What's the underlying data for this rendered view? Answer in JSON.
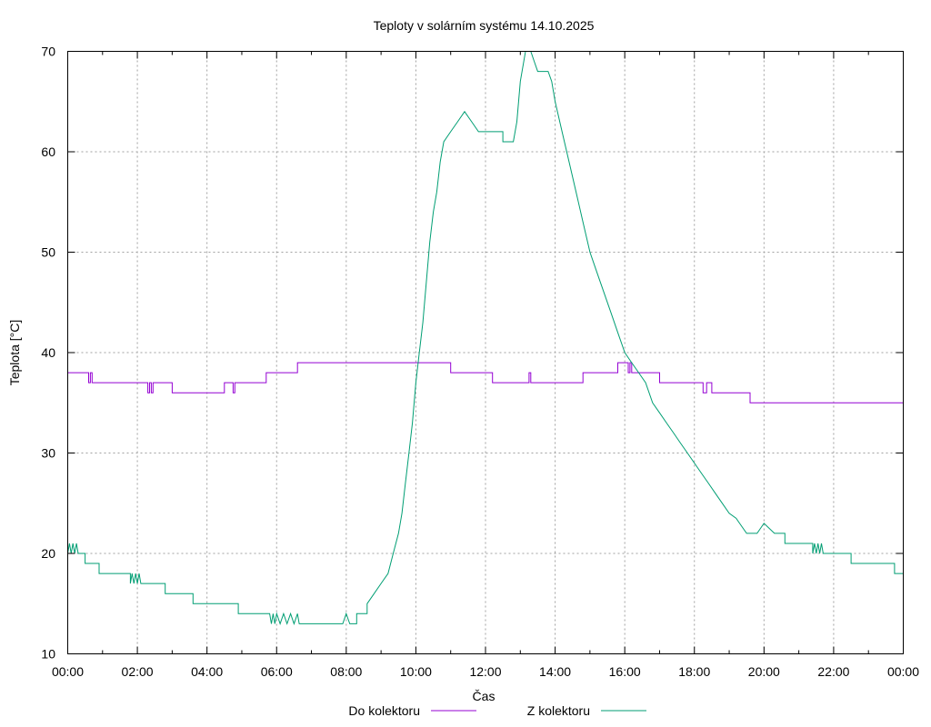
{
  "chart_data": {
    "type": "line",
    "title": "Teploty v solárním systému 14.10.2025",
    "xlabel": "Čas",
    "ylabel": "Teplota [°C]",
    "xlim": [
      0,
      24
    ],
    "ylim": [
      10,
      70
    ],
    "grid": true,
    "legend_position": "bottom",
    "x_ticks": [
      {
        "value": 0,
        "label": "00:00"
      },
      {
        "value": 2,
        "label": "02:00"
      },
      {
        "value": 4,
        "label": "04:00"
      },
      {
        "value": 6,
        "label": "06:00"
      },
      {
        "value": 8,
        "label": "08:00"
      },
      {
        "value": 10,
        "label": "10:00"
      },
      {
        "value": 12,
        "label": "12:00"
      },
      {
        "value": 14,
        "label": "14:00"
      },
      {
        "value": 16,
        "label": "16:00"
      },
      {
        "value": 18,
        "label": "18:00"
      },
      {
        "value": 20,
        "label": "20:00"
      },
      {
        "value": 22,
        "label": "22:00"
      },
      {
        "value": 24,
        "label": "00:00"
      }
    ],
    "y_ticks": [
      {
        "value": 10,
        "label": "10"
      },
      {
        "value": 20,
        "label": "20"
      },
      {
        "value": 30,
        "label": "30"
      },
      {
        "value": 40,
        "label": "40"
      },
      {
        "value": 50,
        "label": "50"
      },
      {
        "value": 60,
        "label": "60"
      },
      {
        "value": 70,
        "label": "70"
      }
    ],
    "series": [
      {
        "name": "Do kolektoru",
        "color": "#9400d3",
        "points": [
          [
            0,
            38
          ],
          [
            0.6,
            38
          ],
          [
            0.6,
            37
          ],
          [
            0.65,
            37
          ],
          [
            0.65,
            38
          ],
          [
            0.7,
            38
          ],
          [
            0.7,
            37
          ],
          [
            2.3,
            37
          ],
          [
            2.3,
            36
          ],
          [
            2.35,
            36
          ],
          [
            2.35,
            37
          ],
          [
            2.4,
            37
          ],
          [
            2.4,
            36
          ],
          [
            2.45,
            36
          ],
          [
            2.45,
            37
          ],
          [
            3.0,
            37
          ],
          [
            3.0,
            36
          ],
          [
            4.5,
            36
          ],
          [
            4.5,
            37
          ],
          [
            4.75,
            37
          ],
          [
            4.75,
            36
          ],
          [
            4.8,
            36
          ],
          [
            4.8,
            37
          ],
          [
            5.7,
            37
          ],
          [
            5.7,
            38
          ],
          [
            6.6,
            38
          ],
          [
            6.6,
            39
          ],
          [
            11.0,
            39
          ],
          [
            11.0,
            38
          ],
          [
            12.2,
            38
          ],
          [
            12.2,
            37
          ],
          [
            13.25,
            37
          ],
          [
            13.25,
            38
          ],
          [
            13.3,
            38
          ],
          [
            13.3,
            37
          ],
          [
            14.8,
            37
          ],
          [
            14.8,
            38
          ],
          [
            15.8,
            38
          ],
          [
            15.8,
            39
          ],
          [
            16.1,
            39
          ],
          [
            16.1,
            38
          ],
          [
            16.15,
            38
          ],
          [
            16.15,
            39
          ],
          [
            16.2,
            39
          ],
          [
            16.2,
            38
          ],
          [
            17.0,
            38
          ],
          [
            17.0,
            37
          ],
          [
            18.0,
            37
          ],
          [
            18.25,
            37
          ],
          [
            18.25,
            36
          ],
          [
            18.35,
            36
          ],
          [
            18.35,
            37
          ],
          [
            18.5,
            37
          ],
          [
            18.5,
            36
          ],
          [
            19.6,
            36
          ],
          [
            19.6,
            35
          ],
          [
            24,
            35
          ]
        ]
      },
      {
        "name": "Z kolektoru",
        "color": "#009e73",
        "points": [
          [
            0,
            20
          ],
          [
            0.05,
            21
          ],
          [
            0.1,
            20
          ],
          [
            0.15,
            21
          ],
          [
            0.2,
            20
          ],
          [
            0.25,
            21
          ],
          [
            0.3,
            20
          ],
          [
            0.5,
            20
          ],
          [
            0.5,
            19
          ],
          [
            0.9,
            19
          ],
          [
            0.9,
            18
          ],
          [
            1.8,
            18
          ],
          [
            1.8,
            17
          ],
          [
            1.85,
            18
          ],
          [
            1.9,
            17
          ],
          [
            1.95,
            18
          ],
          [
            2.0,
            17
          ],
          [
            2.05,
            18
          ],
          [
            2.1,
            17
          ],
          [
            2.1,
            17
          ],
          [
            2.8,
            17
          ],
          [
            2.8,
            16
          ],
          [
            3.6,
            16
          ],
          [
            3.6,
            15
          ],
          [
            4.9,
            15
          ],
          [
            4.9,
            14
          ],
          [
            5.8,
            14
          ],
          [
            5.85,
            13
          ],
          [
            5.9,
            14
          ],
          [
            5.95,
            13
          ],
          [
            6.0,
            14
          ],
          [
            6.1,
            13
          ],
          [
            6.2,
            14
          ],
          [
            6.3,
            13
          ],
          [
            6.4,
            14
          ],
          [
            6.5,
            13
          ],
          [
            6.6,
            14
          ],
          [
            6.65,
            13
          ],
          [
            7.9,
            13
          ],
          [
            8.0,
            14
          ],
          [
            8.1,
            13
          ],
          [
            8.3,
            13
          ],
          [
            8.3,
            14
          ],
          [
            8.6,
            14
          ],
          [
            8.6,
            15
          ],
          [
            8.8,
            16
          ],
          [
            9.0,
            17
          ],
          [
            9.2,
            18
          ],
          [
            9.35,
            20
          ],
          [
            9.5,
            22
          ],
          [
            9.6,
            24
          ],
          [
            9.7,
            27
          ],
          [
            9.8,
            30
          ],
          [
            9.9,
            33
          ],
          [
            10.0,
            37
          ],
          [
            10.1,
            40
          ],
          [
            10.2,
            43
          ],
          [
            10.3,
            47
          ],
          [
            10.4,
            51
          ],
          [
            10.5,
            54
          ],
          [
            10.6,
            56
          ],
          [
            10.7,
            59
          ],
          [
            10.8,
            61
          ],
          [
            11.0,
            62
          ],
          [
            11.2,
            63
          ],
          [
            11.4,
            64
          ],
          [
            11.6,
            63
          ],
          [
            11.8,
            62
          ],
          [
            12.5,
            62
          ],
          [
            12.5,
            61
          ],
          [
            12.8,
            61
          ],
          [
            12.9,
            63
          ],
          [
            13.0,
            67
          ],
          [
            13.1,
            69
          ],
          [
            13.15,
            70
          ],
          [
            13.3,
            70
          ],
          [
            13.4,
            69
          ],
          [
            13.5,
            68
          ],
          [
            13.8,
            68
          ],
          [
            13.9,
            67
          ],
          [
            14.0,
            65
          ],
          [
            14.2,
            62
          ],
          [
            14.4,
            59
          ],
          [
            14.6,
            56
          ],
          [
            14.8,
            53
          ],
          [
            15.0,
            50
          ],
          [
            15.2,
            48
          ],
          [
            15.4,
            46
          ],
          [
            15.6,
            44
          ],
          [
            15.8,
            42
          ],
          [
            16.0,
            40
          ],
          [
            16.2,
            39
          ],
          [
            16.4,
            38
          ],
          [
            16.6,
            37
          ],
          [
            16.8,
            35
          ],
          [
            17.0,
            34
          ],
          [
            17.2,
            33
          ],
          [
            17.4,
            32
          ],
          [
            17.6,
            31
          ],
          [
            17.8,
            30
          ],
          [
            18.0,
            29
          ],
          [
            18.2,
            28
          ],
          [
            18.4,
            27
          ],
          [
            18.6,
            26
          ],
          [
            18.8,
            25
          ],
          [
            19.0,
            24
          ],
          [
            19.2,
            23.5
          ],
          [
            19.3,
            23
          ],
          [
            19.5,
            22
          ],
          [
            19.8,
            22
          ],
          [
            20.0,
            23
          ],
          [
            20.3,
            22
          ],
          [
            20.6,
            22
          ],
          [
            20.6,
            21
          ],
          [
            21.4,
            21
          ],
          [
            21.4,
            20
          ],
          [
            21.45,
            21
          ],
          [
            21.5,
            20
          ],
          [
            21.55,
            21
          ],
          [
            21.6,
            20
          ],
          [
            21.65,
            21
          ],
          [
            21.7,
            20
          ],
          [
            22.5,
            20
          ],
          [
            22.5,
            19
          ],
          [
            23.75,
            19
          ],
          [
            23.75,
            18
          ],
          [
            24,
            18
          ]
        ]
      }
    ]
  }
}
